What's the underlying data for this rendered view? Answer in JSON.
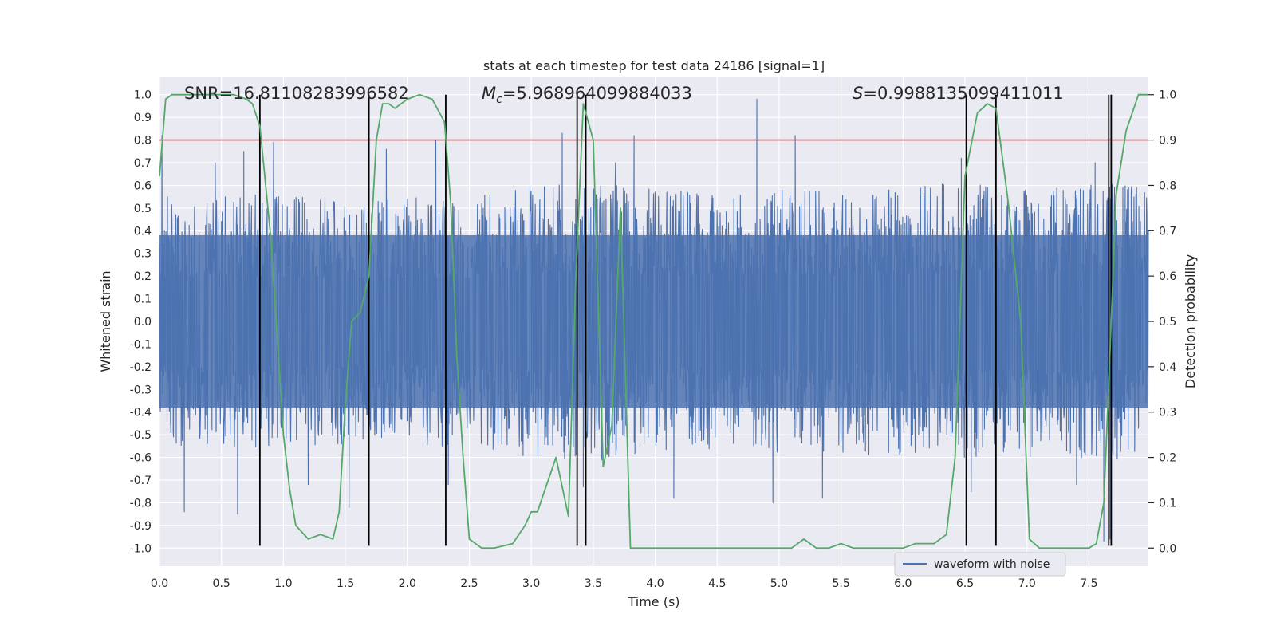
{
  "chart_data": {
    "type": "line",
    "title": "stats at each timestep for test data 24186 [signal=1]",
    "xlabel": "Time (s)",
    "ylabel_left": "Whitened strain",
    "ylabel_right": "Detection probability",
    "xlim": [
      0.0,
      7.98
    ],
    "ylim_left": [
      -1.08,
      1.08
    ],
    "ylim_right": [
      -0.04,
      1.04
    ],
    "x_ticks": [
      "0.0",
      "0.5",
      "1.0",
      "1.5",
      "2.0",
      "2.5",
      "3.0",
      "3.5",
      "4.0",
      "4.5",
      "5.0",
      "5.5",
      "6.0",
      "6.5",
      "7.0",
      "7.5"
    ],
    "y_left_ticks": [
      "1.0",
      "0.9",
      "0.8",
      "0.7",
      "0.6",
      "0.5",
      "0.4",
      "0.3",
      "0.2",
      "0.1",
      "0.0",
      "-0.1",
      "-0.2",
      "-0.3",
      "-0.4",
      "-0.5",
      "-0.6",
      "-0.7",
      "-0.8",
      "-0.9",
      "-1.0"
    ],
    "y_right_ticks": [
      "1.0",
      "0.9",
      "0.8",
      "0.7",
      "0.6",
      "0.5",
      "0.4",
      "0.3",
      "0.2",
      "0.1",
      "0.0"
    ],
    "grid": true,
    "legend": {
      "entries": [
        "waveform with noise"
      ],
      "location": "lower-right"
    },
    "stats": {
      "snr_text": "SNR=16.81108283996582",
      "mc_symbol": "M",
      "mc_sub": "c",
      "mc_value": "=5.968964099884033",
      "s_symbol": "S",
      "s_value": "=0.9988135099411011"
    },
    "threshold": {
      "value": 0.8,
      "axis": "left",
      "color": "#c44e52"
    },
    "event_lines_x": [
      0.81,
      1.69,
      2.31,
      3.37,
      3.44,
      6.51,
      6.75,
      7.66,
      7.68
    ],
    "waveform": {
      "name": "waveform with noise",
      "color": "#4c72b0",
      "spikes": [
        [
          0.02,
          0.82
        ],
        [
          0.2,
          -0.84
        ],
        [
          0.45,
          0.7
        ],
        [
          0.63,
          -0.85
        ],
        [
          0.68,
          0.75
        ],
        [
          0.92,
          0.79
        ],
        [
          1.2,
          -0.72
        ],
        [
          1.53,
          -0.82
        ],
        [
          1.83,
          0.76
        ],
        [
          2.23,
          0.8
        ],
        [
          2.33,
          -0.72
        ],
        [
          3.25,
          0.83
        ],
        [
          3.42,
          -0.73
        ],
        [
          3.68,
          0.7
        ],
        [
          3.83,
          0.82
        ],
        [
          4.15,
          -0.78
        ],
        [
          4.82,
          0.98
        ],
        [
          4.95,
          -0.8
        ],
        [
          5.13,
          0.82
        ],
        [
          5.35,
          -0.78
        ],
        [
          6.47,
          0.72
        ],
        [
          6.55,
          -0.75
        ],
        [
          7.4,
          -0.72
        ],
        [
          7.55,
          0.7
        ],
        [
          7.62,
          -0.97
        ],
        [
          7.67,
          -0.96
        ]
      ],
      "envelope": [
        [
          0.0,
          0.55
        ],
        [
          0.5,
          0.58
        ],
        [
          1.0,
          0.55
        ],
        [
          1.5,
          0.55
        ],
        [
          2.0,
          0.55
        ],
        [
          2.5,
          0.55
        ],
        [
          3.0,
          0.6
        ],
        [
          3.5,
          0.62
        ],
        [
          4.0,
          0.58
        ],
        [
          4.5,
          0.58
        ],
        [
          5.0,
          0.58
        ],
        [
          5.5,
          0.58
        ],
        [
          6.0,
          0.6
        ],
        [
          6.5,
          0.62
        ],
        [
          7.0,
          0.6
        ],
        [
          7.5,
          0.62
        ],
        [
          7.98,
          0.6
        ]
      ]
    },
    "detection_probability": {
      "color": "#55a868",
      "points": [
        [
          0.0,
          0.82
        ],
        [
          0.05,
          0.99
        ],
        [
          0.1,
          1.0
        ],
        [
          0.3,
          1.0
        ],
        [
          0.6,
          1.0
        ],
        [
          0.7,
          0.99
        ],
        [
          0.75,
          0.98
        ],
        [
          0.81,
          0.93
        ],
        [
          0.9,
          0.68
        ],
        [
          1.0,
          0.25
        ],
        [
          1.05,
          0.13
        ],
        [
          1.1,
          0.05
        ],
        [
          1.2,
          0.02
        ],
        [
          1.3,
          0.03
        ],
        [
          1.4,
          0.02
        ],
        [
          1.45,
          0.08
        ],
        [
          1.5,
          0.32
        ],
        [
          1.55,
          0.5
        ],
        [
          1.62,
          0.52
        ],
        [
          1.69,
          0.6
        ],
        [
          1.75,
          0.9
        ],
        [
          1.8,
          0.98
        ],
        [
          1.85,
          0.98
        ],
        [
          1.9,
          0.97
        ],
        [
          1.95,
          0.98
        ],
        [
          2.0,
          0.99
        ],
        [
          2.1,
          1.0
        ],
        [
          2.2,
          0.99
        ],
        [
          2.3,
          0.94
        ],
        [
          2.35,
          0.76
        ],
        [
          2.4,
          0.42
        ],
        [
          2.45,
          0.2
        ],
        [
          2.5,
          0.02
        ],
        [
          2.6,
          0.0
        ],
        [
          2.7,
          0.0
        ],
        [
          2.85,
          0.01
        ],
        [
          2.95,
          0.05
        ],
        [
          3.0,
          0.08
        ],
        [
          3.05,
          0.08
        ],
        [
          3.2,
          0.2
        ],
        [
          3.3,
          0.07
        ],
        [
          3.36,
          0.6
        ],
        [
          3.42,
          0.98
        ],
        [
          3.5,
          0.9
        ],
        [
          3.58,
          0.18
        ],
        [
          3.65,
          0.27
        ],
        [
          3.72,
          0.75
        ],
        [
          3.8,
          0.0
        ],
        [
          3.9,
          0.0
        ],
        [
          4.0,
          0.0
        ],
        [
          4.5,
          0.0
        ],
        [
          4.8,
          0.0
        ],
        [
          5.0,
          0.0
        ],
        [
          5.1,
          0.0
        ],
        [
          5.2,
          0.02
        ],
        [
          5.25,
          0.01
        ],
        [
          5.3,
          0.0
        ],
        [
          5.4,
          0.0
        ],
        [
          5.5,
          0.01
        ],
        [
          5.6,
          0.0
        ],
        [
          5.8,
          0.0
        ],
        [
          6.0,
          0.0
        ],
        [
          6.1,
          0.01
        ],
        [
          6.25,
          0.01
        ],
        [
          6.35,
          0.03
        ],
        [
          6.42,
          0.2
        ],
        [
          6.5,
          0.82
        ],
        [
          6.6,
          0.96
        ],
        [
          6.68,
          0.98
        ],
        [
          6.75,
          0.97
        ],
        [
          6.85,
          0.76
        ],
        [
          6.95,
          0.5
        ],
        [
          7.02,
          0.02
        ],
        [
          7.1,
          0.0
        ],
        [
          7.5,
          0.0
        ],
        [
          7.56,
          0.01
        ],
        [
          7.62,
          0.1
        ],
        [
          7.67,
          0.43
        ],
        [
          7.72,
          0.78
        ],
        [
          7.8,
          0.92
        ],
        [
          7.9,
          1.0
        ],
        [
          7.98,
          1.0
        ]
      ]
    }
  }
}
